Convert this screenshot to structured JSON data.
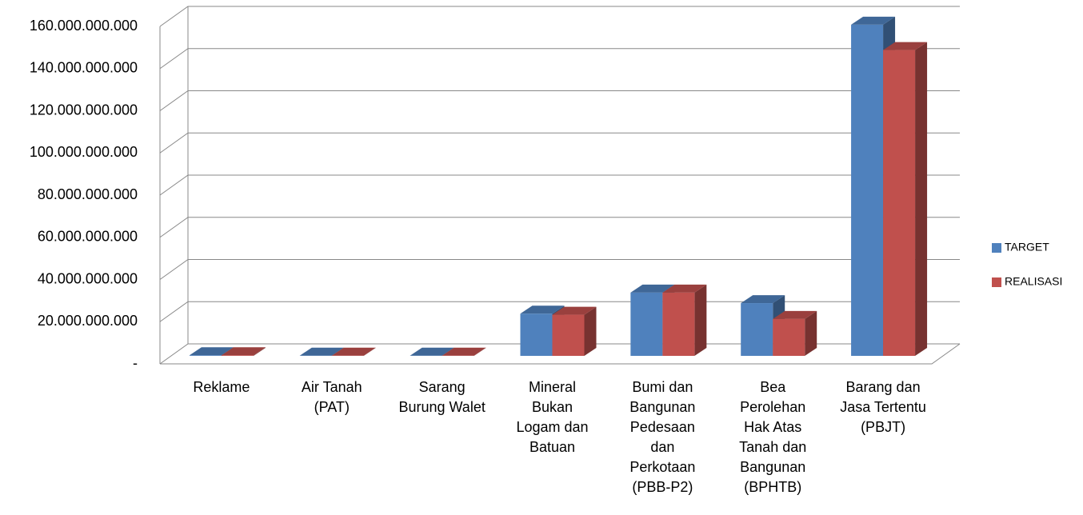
{
  "chart_data": {
    "type": "bar3d",
    "categories": [
      "Reklame",
      "Air Tanah (PAT)",
      "Sarang Burung Walet",
      "Mineral Bukan Logam dan Batuan",
      "Bumi dan Bangunan Pedesaan dan Perkotaan (PBB-P2)",
      "Bea Perolehan Hak Atas Tanah dan Bangunan (BPHTB)",
      "Barang dan Jasa Tertentu (PBJT)"
    ],
    "series": [
      {
        "name": "TARGET",
        "color": "#4f81bd",
        "values": [
          300000000,
          100000000,
          100000000,
          20000000000,
          30000000000,
          25000000000,
          157000000000
        ]
      },
      {
        "name": "REALISASI",
        "color": "#c0504d",
        "values": [
          300000000,
          100000000,
          100000000,
          19500000000,
          30000000000,
          17500000000,
          145000000000
        ]
      }
    ],
    "ylim": [
      0,
      160000000000
    ],
    "yticks": [
      {
        "value": 0,
        "label": "-"
      },
      {
        "value": 20000000000,
        "label": "20.000.000.000"
      },
      {
        "value": 40000000000,
        "label": "40.000.000.000"
      },
      {
        "value": 60000000000,
        "label": "60.000.000.000"
      },
      {
        "value": 80000000000,
        "label": "80.000.000.000"
      },
      {
        "value": 100000000000,
        "label": "100.000.000.000"
      },
      {
        "value": 120000000000,
        "label": "120.000.000.000"
      },
      {
        "value": 140000000000,
        "label": "140.000.000.000"
      },
      {
        "value": 160000000000,
        "label": "160.000.000.000"
      }
    ],
    "grid": true,
    "legend": "right"
  }
}
